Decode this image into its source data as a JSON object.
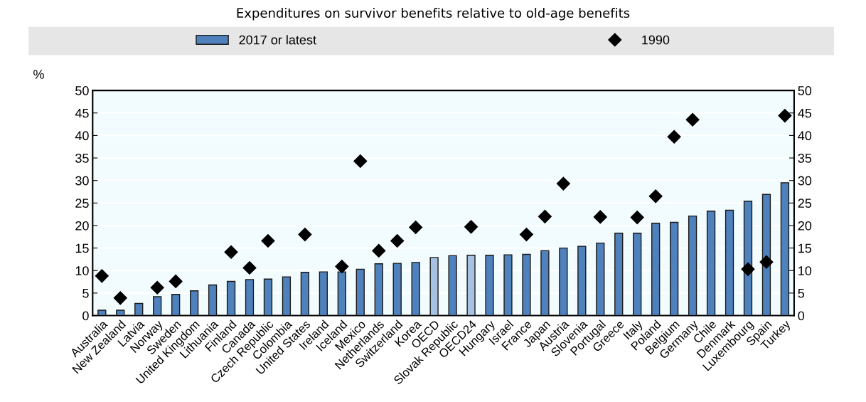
{
  "chart_data": {
    "type": "bar",
    "title": "Expenditures on survivor benefits relative to old-age benefits",
    "ylabel": "%",
    "categories": [
      "Australia",
      "New Zealand",
      "Latvia",
      "Norway",
      "Sweden",
      "United Kingdom",
      "Lithuania",
      "Finland",
      "Canada",
      "Czech Republic",
      "Colombia",
      "United States",
      "Ireland",
      "Iceland",
      "Mexico",
      "Netherlands",
      "Switzerland",
      "Korea",
      "OECD",
      "Slovak Republic",
      "OECD24",
      "Hungary",
      "Israel",
      "France",
      "Japan",
      "Austria",
      "Slovenia",
      "Portugal",
      "Greece",
      "Italy",
      "Poland",
      "Belgium",
      "Germany",
      "Chile",
      "Denmark",
      "Luxembourg",
      "Spain",
      "Turkey"
    ],
    "series": [
      {
        "name": "2017 or latest",
        "color": "#4f81bd",
        "colors": [
          "#4f81bd",
          "#4f81bd",
          "#4f81bd",
          "#4f81bd",
          "#4f81bd",
          "#4f81bd",
          "#4f81bd",
          "#4f81bd",
          "#4f81bd",
          "#4f81bd",
          "#4f81bd",
          "#4f81bd",
          "#4f81bd",
          "#4f81bd",
          "#4f81bd",
          "#4f81bd",
          "#4f81bd",
          "#4f81bd",
          "#a7c1e3",
          "#4f81bd",
          "#a7c1e3",
          "#4f81bd",
          "#4f81bd",
          "#4f81bd",
          "#4f81bd",
          "#4f81bd",
          "#4f81bd",
          "#4f81bd",
          "#4f81bd",
          "#4f81bd",
          "#4f81bd",
          "#4f81bd",
          "#4f81bd",
          "#4f81bd",
          "#4f81bd",
          "#4f81bd",
          "#4f81bd",
          "#4f81bd"
        ],
        "values": [
          1.2,
          1.2,
          2.7,
          4.2,
          4.7,
          5.5,
          6.8,
          7.6,
          8.0,
          8.1,
          8.6,
          9.6,
          9.7,
          9.7,
          10.3,
          11.5,
          11.6,
          11.8,
          12.9,
          13.3,
          13.4,
          13.4,
          13.5,
          13.6,
          14.4,
          15.0,
          15.4,
          16.1,
          18.3,
          18.3,
          20.5,
          20.7,
          22.1,
          23.2,
          23.4,
          25.4,
          26.9,
          29.5
        ]
      },
      {
        "name": "1990",
        "type": "scatter",
        "marker": "diamond",
        "color": "#000000",
        "values": [
          8.8,
          3.9,
          null,
          6.2,
          7.6,
          null,
          null,
          14.1,
          10.6,
          16.6,
          null,
          18.0,
          null,
          10.9,
          34.3,
          14.4,
          16.6,
          19.6,
          null,
          null,
          19.7,
          null,
          null,
          18.0,
          22.0,
          29.3,
          null,
          21.9,
          null,
          21.8,
          26.5,
          39.7,
          43.5,
          null,
          null,
          10.3,
          11.9,
          44.4
        ]
      }
    ],
    "ylim": [
      0,
      50
    ],
    "yticks": [
      0,
      5,
      10,
      15,
      20,
      25,
      30,
      35,
      40,
      45,
      50
    ],
    "y2lim": [
      0,
      50
    ],
    "y2ticks": [
      0,
      5,
      10,
      15,
      20,
      25,
      30,
      35,
      40,
      45,
      50
    ],
    "grid": true,
    "legend": "top"
  }
}
